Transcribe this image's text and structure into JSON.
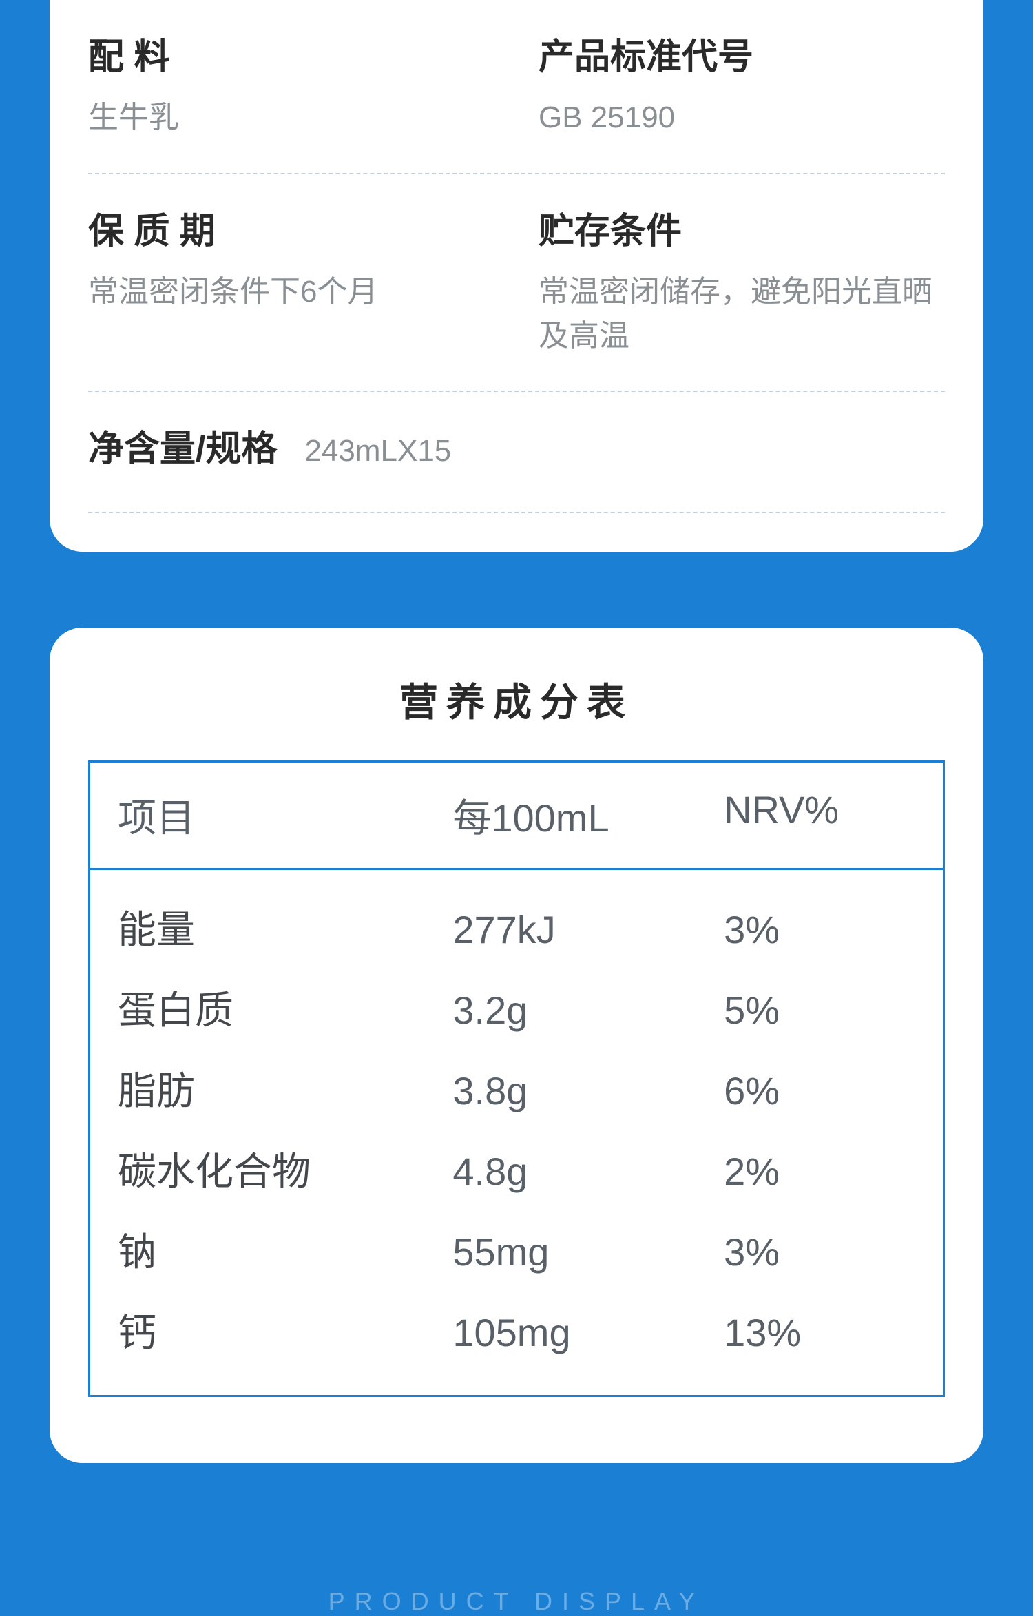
{
  "colors": {
    "page_bg": "#1b7fd4",
    "card_bg": "#ffffff",
    "label_text": "#2a2a2a",
    "value_text": "#8a8f94",
    "table_border": "#1b7fd4",
    "table_text": "#5a6068",
    "divider": "#c0d0e0"
  },
  "info": {
    "ingredients": {
      "label": "配        料",
      "value": "生牛乳"
    },
    "standard": {
      "label": "产品标准代号",
      "value": "GB 25190"
    },
    "shelf_life": {
      "label": "保 质 期",
      "value": "常温密闭条件下6个月"
    },
    "storage": {
      "label": "贮存条件",
      "value": "常温密闭储存，避免阳光直晒及高温"
    },
    "net": {
      "label": "净含量/规格",
      "value": "243mLX15"
    }
  },
  "nutrition": {
    "title": "营养成分表",
    "head": {
      "item": "项目",
      "per": "每100mL",
      "nrv": "NRV%"
    },
    "rows": [
      {
        "item": "能量",
        "per": "277kJ",
        "nrv": "3%"
      },
      {
        "item": "蛋白质",
        "per": "3.2g",
        "nrv": "5%"
      },
      {
        "item": "脂肪",
        "per": "3.8g",
        "nrv": "6%"
      },
      {
        "item": "碳水化合物",
        "per": "4.8g",
        "nrv": "2%"
      },
      {
        "item": "钠",
        "per": "55mg",
        "nrv": "3%"
      },
      {
        "item": "钙",
        "per": "105mg",
        "nrv": "13%"
      }
    ]
  },
  "footer": "PRODUCT DISPLAY"
}
